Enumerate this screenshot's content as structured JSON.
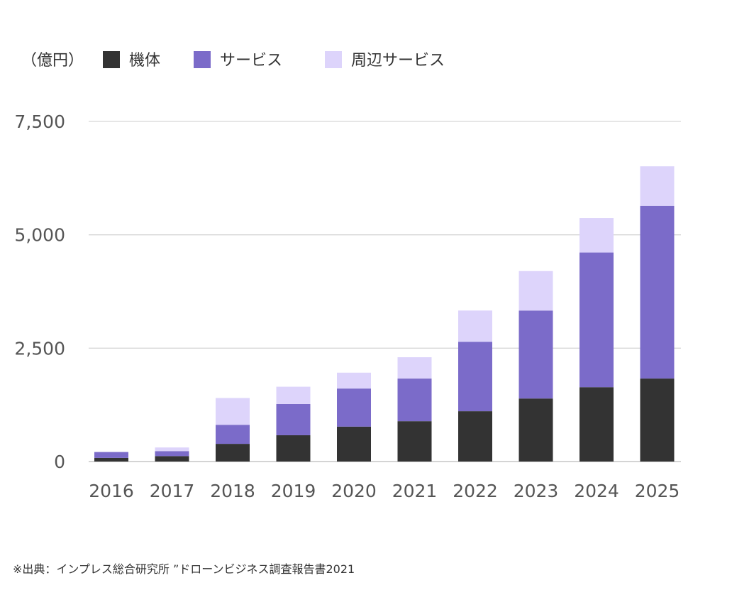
{
  "chart_data": {
    "type": "bar",
    "stacked": true,
    "title": "",
    "ylabel": "（億円）",
    "xlabel": "",
    "categories": [
      "2016",
      "2017",
      "2018",
      "2019",
      "2020",
      "2021",
      "2022",
      "2023",
      "2024",
      "2025"
    ],
    "series": [
      {
        "name": "機体",
        "color": "#333333",
        "values": [
          80,
          120,
          390,
          580,
          770,
          890,
          1110,
          1390,
          1640,
          1830
        ]
      },
      {
        "name": "サービス",
        "color": "#7b6bc9",
        "values": [
          130,
          110,
          420,
          690,
          840,
          940,
          1530,
          1940,
          2970,
          3810
        ]
      },
      {
        "name": "周辺サービス",
        "color": "#ddd4fb",
        "values": [
          0,
          80,
          590,
          380,
          350,
          470,
          690,
          870,
          760,
          870
        ]
      }
    ],
    "ylim": [
      0,
      7500
    ],
    "yticks": [
      0,
      2500,
      5000,
      7500
    ],
    "ytick_labels": [
      "0",
      "2,500",
      "5,000",
      "7,500"
    ],
    "grid": true,
    "legend": "top-left"
  },
  "source": "※出典：インプレス総合研究所 ”ドローンビジネス調査報告書2021"
}
